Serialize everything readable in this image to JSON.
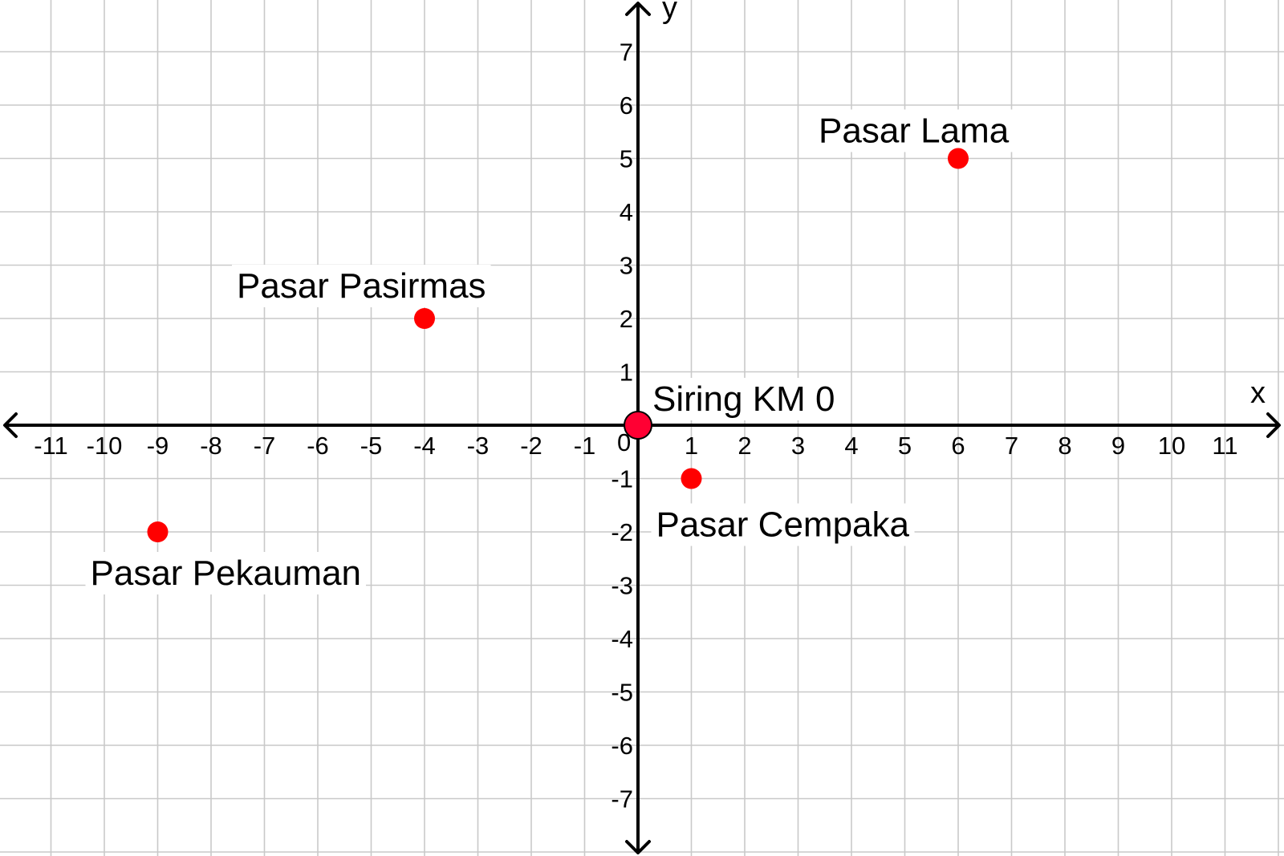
{
  "chart_data": {
    "type": "scatter",
    "xlabel": "x",
    "ylabel": "y",
    "xlim": [
      -12,
      12
    ],
    "ylim": [
      -8,
      8
    ],
    "x_ticks": [
      -11,
      -10,
      -9,
      -8,
      -7,
      -6,
      -5,
      -4,
      -3,
      -2,
      -1,
      1,
      2,
      3,
      4,
      5,
      6,
      7,
      8,
      9,
      10,
      11
    ],
    "y_ticks": [
      -7,
      -6,
      -5,
      -4,
      -3,
      -2,
      -1,
      1,
      2,
      3,
      4,
      5,
      6,
      7
    ],
    "origin_label": "0",
    "grid": true,
    "point_color": "#ff0000",
    "origin_point_color": "#ff0033",
    "points": [
      {
        "name": "Siring KM 0",
        "x": 0,
        "y": 0
      },
      {
        "name": "Pasar Lama",
        "x": 6,
        "y": 5
      },
      {
        "name": "Pasar Pasirmas",
        "x": -4,
        "y": 2
      },
      {
        "name": "Pasar Cempaka",
        "x": 1,
        "y": -1
      },
      {
        "name": "Pasar Pekauman",
        "x": -9,
        "y": -2
      }
    ]
  }
}
